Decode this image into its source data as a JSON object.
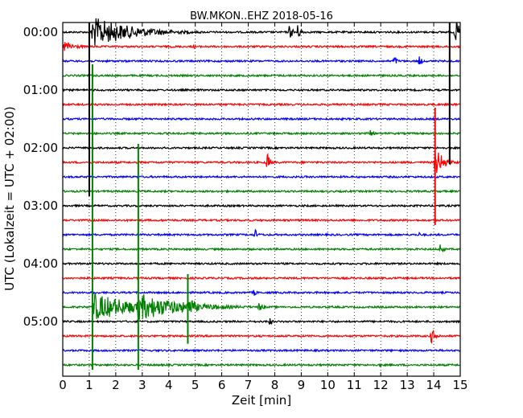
{
  "chart_data": {
    "type": "line",
    "title": "BW.MKON..EHZ 2018-05-16",
    "xlabel": "Zeit  [min]",
    "ylabel": "UTC (Lokalzeit = UTC + 02:00)",
    "xlim": [
      0,
      15
    ],
    "x_ticks": [
      "0",
      "1",
      "2",
      "3",
      "4",
      "5",
      "6",
      "7",
      "8",
      "9",
      "10",
      "11",
      "12",
      "13",
      "14",
      "15"
    ],
    "y_ticks": [
      "00:00",
      "01:00",
      "02:00",
      "03:00",
      "04:00",
      "05:00"
    ],
    "grid": "vertical dotted",
    "trace_colors": [
      "#000000",
      "#ff0000",
      "#0000ff",
      "#008000"
    ],
    "series": [
      {
        "events": [
          {
            "t": 1.1,
            "amp": 20,
            "coda": 1.5
          },
          {
            "t": 8.55,
            "amp": 10,
            "coda": 0.15
          },
          {
            "t": 8.85,
            "amp": 10,
            "coda": 0.15
          },
          {
            "t": 14.8,
            "amp": 14,
            "coda": 0.3
          }
        ]
      },
      {
        "events": [
          {
            "t": 0.05,
            "amp": 8,
            "coda": 0.4
          },
          {
            "t": 4.95,
            "amp": 3,
            "coda": 0.1
          }
        ]
      },
      {
        "events": [
          {
            "t": 12.5,
            "amp": 8,
            "coda": 0.1
          },
          {
            "t": 13.45,
            "amp": 7,
            "coda": 0.1
          }
        ]
      },
      {
        "events": []
      },
      {
        "events": []
      },
      {
        "events": []
      },
      {
        "events": []
      },
      {
        "events": [
          {
            "t": 11.55,
            "amp": 6,
            "coda": 0.15
          }
        ]
      },
      {
        "events": []
      },
      {
        "events": [
          {
            "t": 7.7,
            "amp": 16,
            "coda": 0.1
          },
          {
            "t": 14.05,
            "amp": 20,
            "coda": 0.3
          }
        ]
      },
      {
        "events": []
      },
      {
        "events": []
      },
      {
        "events": []
      },
      {
        "events": []
      },
      {
        "events": [
          {
            "t": 7.25,
            "amp": 8,
            "coda": 0.1
          },
          {
            "t": 13.4,
            "amp": 5,
            "coda": 0.1
          }
        ]
      },
      {
        "events": [
          {
            "t": 14.25,
            "amp": 10,
            "coda": 0.1
          }
        ]
      },
      {
        "events": []
      },
      {
        "events": []
      },
      {
        "events": [
          {
            "t": 7.2,
            "amp": 6,
            "coda": 0.1
          }
        ]
      },
      {
        "events": [
          {
            "t": 1.15,
            "amp": 18,
            "coda": 1.6
          },
          {
            "t": 2.85,
            "amp": 18,
            "coda": 1.6
          },
          {
            "t": 4.75,
            "amp": 14,
            "coda": 0.3
          },
          {
            "t": 7.4,
            "amp": 7,
            "coda": 0.15
          }
        ]
      },
      {
        "events": [
          {
            "t": 7.8,
            "amp": 6,
            "coda": 0.1
          },
          {
            "t": 12.3,
            "amp": 3,
            "coda": 0.1
          }
        ]
      },
      {
        "events": [
          {
            "t": 13.9,
            "amp": 10,
            "coda": 0.2
          }
        ]
      },
      {
        "events": []
      },
      {
        "events": [
          {
            "t": 11.95,
            "amp": 3,
            "coda": 0.1
          }
        ]
      }
    ],
    "spikes": [
      {
        "t": 1.0,
        "from_row": 0,
        "to_row": 11,
        "color": "#000000"
      },
      {
        "t": 1.12,
        "from_row": 3,
        "to_row": 23,
        "color": "#008000"
      },
      {
        "t": 2.85,
        "from_row": 8.5,
        "to_row": 23,
        "color": "#008000"
      },
      {
        "t": 4.72,
        "from_row": 17.5,
        "to_row": 21.2,
        "color": "#008000"
      },
      {
        "t": 14.05,
        "from_row": 6,
        "to_row": 13,
        "color": "#ff0000"
      },
      {
        "t": 14.6,
        "from_row": 0,
        "to_row": 8.8,
        "color": "#000000"
      }
    ]
  }
}
